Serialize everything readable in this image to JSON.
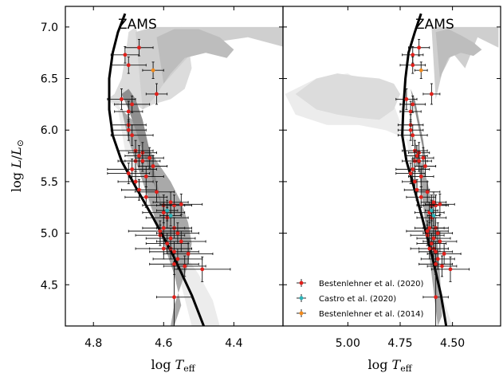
{
  "chart_data": [
    {
      "type": "scatter",
      "panel": "left",
      "xlabel": "log T_eff",
      "ylabel": "log L/L_sun",
      "xlim": [
        4.88,
        4.26
      ],
      "ylim": [
        4.1,
        7.2
      ],
      "x_ticks": [
        4.8,
        4.6,
        4.4
      ],
      "x_tick_labels": [
        "4.8",
        "4.6",
        "4.4"
      ],
      "y_ticks": [
        4.5,
        5.0,
        5.5,
        6.0,
        6.5,
        7.0
      ],
      "y_tick_labels": [
        "4.5",
        "5.0",
        "5.5",
        "6.0",
        "6.5",
        "7.0"
      ],
      "annotation": "ZAMS",
      "zams": {
        "x": [
          4.71,
          4.73,
          4.745,
          4.755,
          4.755,
          4.745,
          4.72,
          4.68,
          4.63,
          4.575,
          4.52,
          4.48
        ],
        "y": [
          7.13,
          6.95,
          6.75,
          6.5,
          6.2,
          5.95,
          5.7,
          5.45,
          5.15,
          4.8,
          4.4,
          4.05
        ]
      },
      "density": [
        {
          "level": 1,
          "color": "#ececec",
          "x": [
            4.76,
            4.73,
            4.72,
            4.71,
            4.69,
            4.66,
            4.62,
            4.58,
            4.54,
            4.5,
            4.46,
            4.44,
            4.45,
            4.48,
            4.52,
            4.55,
            4.59,
            4.63,
            4.66,
            4.68,
            4.7,
            4.72,
            4.74,
            4.76
          ],
          "y": [
            6.3,
            6.2,
            6.0,
            5.8,
            5.6,
            5.4,
            5.2,
            5.0,
            4.8,
            4.6,
            4.35,
            4.1,
            4.1,
            4.1,
            4.1,
            4.5,
            4.9,
            5.2,
            5.4,
            5.7,
            6.0,
            6.2,
            6.3,
            6.3
          ]
        },
        {
          "level": 2,
          "color": "#dcdcdc",
          "x": [
            4.76,
            4.74,
            4.72,
            4.71,
            4.7,
            4.68,
            4.66,
            4.62,
            4.58,
            4.55,
            4.53,
            4.52,
            4.54,
            4.58,
            4.63,
            4.66,
            4.68,
            4.71,
            4.73,
            4.76
          ],
          "y": [
            6.3,
            6.35,
            6.5,
            6.7,
            6.95,
            7.0,
            6.8,
            6.75,
            6.95,
            7.0,
            6.85,
            6.6,
            6.4,
            6.3,
            6.25,
            6.2,
            6.25,
            6.3,
            6.25,
            6.3
          ]
        },
        {
          "level": 3,
          "color": "#cfcfcf",
          "x": [
            4.68,
            4.63,
            4.57,
            4.47,
            4.34,
            4.25,
            4.25,
            4.36,
            4.46,
            4.52,
            4.56,
            4.6,
            4.63,
            4.66,
            4.68
          ],
          "y": [
            6.95,
            7.0,
            7.0,
            7.0,
            7.0,
            7.0,
            6.8,
            6.9,
            6.85,
            6.75,
            6.6,
            6.45,
            6.3,
            6.2,
            6.95
          ]
        },
        {
          "level": 4,
          "color": "#bdbdbd",
          "x": [
            4.62,
            4.57,
            4.5,
            4.44,
            4.4,
            4.42,
            4.48,
            4.54,
            4.58,
            4.6,
            4.62
          ],
          "y": [
            6.9,
            6.98,
            6.98,
            6.9,
            6.78,
            6.7,
            6.75,
            6.7,
            6.55,
            6.45,
            6.9
          ]
        },
        {
          "level": 5,
          "color": "#a9a9a9",
          "x": [
            4.72,
            4.69,
            4.66,
            4.62,
            4.58,
            4.55,
            4.53,
            4.52,
            4.53,
            4.55,
            4.57,
            4.58,
            4.57,
            4.55,
            4.57,
            4.6,
            4.63,
            4.67,
            4.7,
            4.72
          ],
          "y": [
            6.2,
            6.1,
            5.9,
            5.7,
            5.5,
            5.3,
            5.1,
            4.9,
            4.7,
            4.5,
            4.3,
            4.1,
            4.1,
            4.3,
            4.6,
            4.9,
            5.2,
            5.6,
            5.9,
            6.2
          ]
        },
        {
          "level": 6,
          "color": "#8f8f8f",
          "x": [
            4.72,
            4.7,
            4.68,
            4.66,
            4.64,
            4.62,
            4.6,
            4.62,
            4.64,
            4.66,
            4.68,
            4.7,
            4.72
          ],
          "y": [
            6.35,
            6.2,
            6.0,
            5.8,
            5.6,
            5.4,
            5.2,
            5.5,
            5.8,
            6.1,
            6.3,
            6.4,
            6.35
          ]
        }
      ],
      "series": [
        {
          "name": "Bestenlehner et al. (2020)",
          "color": "#e0201b",
          "x": [
            4.71,
            4.67,
            4.7,
            4.62,
            4.72,
            4.7,
            4.69,
            4.7,
            4.7,
            4.69,
            4.68,
            4.67,
            4.68,
            4.69,
            4.66,
            4.66,
            4.64,
            4.63,
            4.65,
            4.7,
            4.68,
            4.67,
            4.62,
            4.65,
            4.58,
            4.6,
            4.57,
            4.6,
            4.59,
            4.55,
            4.57,
            4.6,
            4.61,
            4.56,
            4.59,
            4.58,
            4.57,
            4.56,
            4.53,
            4.58,
            4.6,
            4.55,
            4.57,
            4.54,
            4.61,
            4.49,
            4.57
          ],
          "xerr": [
            0.04,
            0.04,
            0.05,
            0.03,
            0.04,
            0.04,
            0.05,
            0.05,
            0.05,
            0.06,
            0.05,
            0.04,
            0.05,
            0.07,
            0.04,
            0.05,
            0.04,
            0.04,
            0.05,
            0.06,
            0.05,
            0.05,
            0.05,
            0.06,
            0.05,
            0.06,
            0.05,
            0.06,
            0.06,
            0.06,
            0.05,
            0.06,
            0.07,
            0.06,
            0.06,
            0.06,
            0.07,
            0.07,
            0.07,
            0.07,
            0.08,
            0.07,
            0.07,
            0.06,
            0.09,
            0.08,
            0.05
          ],
          "y": [
            6.73,
            6.8,
            6.63,
            6.35,
            6.3,
            6.18,
            6.25,
            6.05,
            6.0,
            5.95,
            5.8,
            5.75,
            5.7,
            5.62,
            5.78,
            5.7,
            5.73,
            5.65,
            5.55,
            5.58,
            5.5,
            5.42,
            5.4,
            5.35,
            5.3,
            5.27,
            5.27,
            5.2,
            5.15,
            5.28,
            5.05,
            5.05,
            4.98,
            5.0,
            4.9,
            4.85,
            4.82,
            4.75,
            4.8,
            4.95,
            4.85,
            4.92,
            4.7,
            4.68,
            5.02,
            4.65,
            4.38
          ],
          "yerr": [
            0.08,
            0.08,
            0.08,
            0.1,
            0.1,
            0.1,
            0.08,
            0.1,
            0.1,
            0.1,
            0.1,
            0.1,
            0.1,
            0.1,
            0.1,
            0.1,
            0.1,
            0.1,
            0.1,
            0.1,
            0.1,
            0.1,
            0.1,
            0.1,
            0.1,
            0.1,
            0.1,
            0.1,
            0.1,
            0.1,
            0.1,
            0.1,
            0.1,
            0.1,
            0.1,
            0.1,
            0.1,
            0.1,
            0.1,
            0.1,
            0.1,
            0.1,
            0.1,
            0.1,
            0.1,
            0.12,
            0.3
          ]
        },
        {
          "name": "Castro et al. (2020)",
          "color": "#2bb3b8",
          "x": [
            4.59,
            4.58
          ],
          "xerr": [
            0.03,
            0.03
          ],
          "y": [
            5.22,
            5.17
          ],
          "yerr": [
            0.1,
            0.1
          ]
        },
        {
          "name": "Bestenlehner et al. (2014)",
          "color": "#f08a1d",
          "x": [
            4.63
          ],
          "xerr": [
            0.03
          ],
          "y": [
            6.58
          ],
          "yerr": [
            0.08
          ]
        }
      ]
    },
    {
      "type": "scatter",
      "panel": "right",
      "xlabel": "log T_eff",
      "xlim": [
        5.31,
        4.27
      ],
      "ylim": [
        4.1,
        7.2
      ],
      "x_ticks": [
        5.0,
        4.75,
        4.5
      ],
      "x_tick_labels": [
        "5.00",
        "4.75",
        "4.50"
      ],
      "y_ticks": [
        4.5,
        5.0,
        5.5,
        6.0,
        6.5,
        7.0
      ],
      "annotation": "ZAMS",
      "legend_position": "lower-left",
      "zams": {
        "x": [
          4.65,
          4.68,
          4.71,
          4.725,
          4.735,
          4.74,
          4.72,
          4.685,
          4.645,
          4.6,
          4.555,
          4.53
        ],
        "y": [
          7.13,
          6.95,
          6.75,
          6.5,
          6.2,
          5.95,
          5.7,
          5.45,
          5.15,
          4.8,
          4.4,
          4.1
        ]
      },
      "density": [
        {
          "level": 1,
          "color": "#ececec",
          "x": [
            5.3,
            5.25,
            5.1,
            4.95,
            4.82,
            4.7,
            4.68,
            4.66,
            4.63,
            4.6,
            4.57,
            4.55,
            4.52,
            4.5,
            4.5,
            4.55,
            4.6,
            4.64,
            4.68,
            4.72,
            4.78,
            4.88,
            5.0,
            5.15,
            5.3
          ],
          "y": [
            6.35,
            6.15,
            6.05,
            6.05,
            6.0,
            5.9,
            5.6,
            5.3,
            5.0,
            4.8,
            4.5,
            4.3,
            4.1,
            4.1,
            4.1,
            4.4,
            4.8,
            5.1,
            5.5,
            5.9,
            6.25,
            6.4,
            6.55,
            6.5,
            6.35
          ]
        },
        {
          "level": 2,
          "color": "#dcdcdc",
          "x": [
            5.25,
            5.15,
            5.05,
            4.95,
            4.85,
            4.78,
            4.75,
            4.78,
            4.85,
            4.95,
            5.05,
            5.15,
            5.25
          ],
          "y": [
            6.35,
            6.2,
            6.15,
            6.12,
            6.1,
            6.2,
            6.35,
            6.45,
            6.5,
            6.52,
            6.55,
            6.5,
            6.35
          ]
        },
        {
          "level": 3,
          "color": "#cfcfcf",
          "x": [
            4.6,
            4.5,
            4.4,
            4.28,
            4.28,
            4.38,
            4.44,
            4.5,
            4.55,
            4.58,
            4.6
          ],
          "y": [
            7.0,
            7.0,
            7.0,
            7.0,
            6.8,
            6.9,
            6.6,
            6.75,
            6.55,
            6.3,
            7.0
          ]
        },
        {
          "level": 4,
          "color": "#bdbdbd",
          "x": [
            4.58,
            4.52,
            4.46,
            4.4,
            4.36,
            4.4,
            4.46,
            4.52,
            4.56,
            4.58
          ],
          "y": [
            6.95,
            6.98,
            6.92,
            6.85,
            6.78,
            6.72,
            6.75,
            6.7,
            6.5,
            6.95
          ]
        },
        {
          "level": 5,
          "color": "#a9a9a9",
          "x": [
            4.72,
            4.7,
            4.68,
            4.65,
            4.62,
            4.6,
            4.58,
            4.57,
            4.56,
            4.55,
            4.57,
            4.6,
            4.63,
            4.66,
            4.69,
            4.72
          ],
          "y": [
            6.3,
            6.1,
            5.9,
            5.7,
            5.5,
            5.3,
            5.1,
            4.9,
            4.6,
            4.2,
            4.1,
            4.6,
            5.1,
            5.6,
            6.0,
            6.3
          ]
        },
        {
          "level": 6,
          "color": "#8f8f8f",
          "x": [
            4.7,
            4.68,
            4.66,
            4.64,
            4.62,
            4.6,
            4.62,
            4.64,
            4.66,
            4.68,
            4.7
          ],
          "y": [
            6.4,
            6.2,
            6.0,
            5.8,
            5.6,
            5.4,
            5.6,
            5.9,
            6.1,
            6.3,
            6.4
          ]
        }
      ],
      "series": [
        {
          "name": "Bestenlehner et al. (2020)",
          "color": "#e0201b",
          "x": [
            4.69,
            4.66,
            4.69,
            4.6,
            4.72,
            4.7,
            4.69,
            4.7,
            4.7,
            4.69,
            4.68,
            4.67,
            4.68,
            4.69,
            4.66,
            4.66,
            4.64,
            4.63,
            4.65,
            4.7,
            4.68,
            4.67,
            4.62,
            4.65,
            4.59,
            4.6,
            4.58,
            4.61,
            4.6,
            4.56,
            4.58,
            4.61,
            4.62,
            4.57,
            4.6,
            4.59,
            4.58,
            4.57,
            4.54,
            4.59,
            4.61,
            4.56,
            4.58,
            4.55,
            4.62,
            4.51,
            4.58
          ],
          "xerr": [
            0.05,
            0.05,
            0.06,
            0.04,
            0.05,
            0.05,
            0.06,
            0.06,
            0.06,
            0.07,
            0.06,
            0.05,
            0.06,
            0.08,
            0.05,
            0.06,
            0.05,
            0.05,
            0.06,
            0.07,
            0.06,
            0.06,
            0.06,
            0.07,
            0.06,
            0.07,
            0.06,
            0.07,
            0.07,
            0.07,
            0.06,
            0.07,
            0.08,
            0.07,
            0.07,
            0.07,
            0.08,
            0.08,
            0.08,
            0.08,
            0.09,
            0.08,
            0.08,
            0.07,
            0.1,
            0.09,
            0.06
          ],
          "y": [
            6.73,
            6.8,
            6.63,
            6.35,
            6.3,
            6.18,
            6.25,
            6.05,
            6.0,
            5.95,
            5.8,
            5.75,
            5.7,
            5.62,
            5.78,
            5.7,
            5.73,
            5.65,
            5.55,
            5.58,
            5.5,
            5.42,
            5.4,
            5.35,
            5.3,
            5.27,
            5.27,
            5.2,
            5.15,
            5.28,
            5.05,
            5.05,
            4.98,
            5.0,
            4.9,
            4.85,
            4.82,
            4.75,
            4.8,
            4.95,
            4.85,
            4.92,
            4.7,
            4.68,
            5.02,
            4.65,
            4.38
          ],
          "yerr": [
            0.08,
            0.08,
            0.08,
            0.1,
            0.1,
            0.1,
            0.08,
            0.1,
            0.1,
            0.1,
            0.1,
            0.1,
            0.1,
            0.1,
            0.1,
            0.1,
            0.1,
            0.1,
            0.1,
            0.1,
            0.1,
            0.1,
            0.1,
            0.1,
            0.1,
            0.1,
            0.1,
            0.1,
            0.1,
            0.1,
            0.1,
            0.1,
            0.1,
            0.1,
            0.1,
            0.1,
            0.1,
            0.1,
            0.1,
            0.1,
            0.1,
            0.1,
            0.1,
            0.1,
            0.1,
            0.12,
            0.3
          ]
        },
        {
          "name": "Castro et al. (2020)",
          "color": "#2bb3b8",
          "x": [
            4.6,
            4.59
          ],
          "xerr": [
            0.03,
            0.03
          ],
          "y": [
            5.22,
            5.17
          ],
          "yerr": [
            0.1,
            0.1
          ]
        },
        {
          "name": "Bestenlehner et al. (2014)",
          "color": "#f08a1d",
          "x": [
            4.65
          ],
          "xerr": [
            0.03
          ],
          "y": [
            6.58
          ],
          "yerr": [
            0.08
          ]
        }
      ],
      "legend": [
        {
          "label": "Bestenlehner et al. (2020)",
          "color": "#e0201b"
        },
        {
          "label": "Castro et al. (2020)",
          "color": "#2bb3b8"
        },
        {
          "label": "Bestenlehner et al. (2014)",
          "color": "#f08a1d"
        }
      ]
    }
  ]
}
